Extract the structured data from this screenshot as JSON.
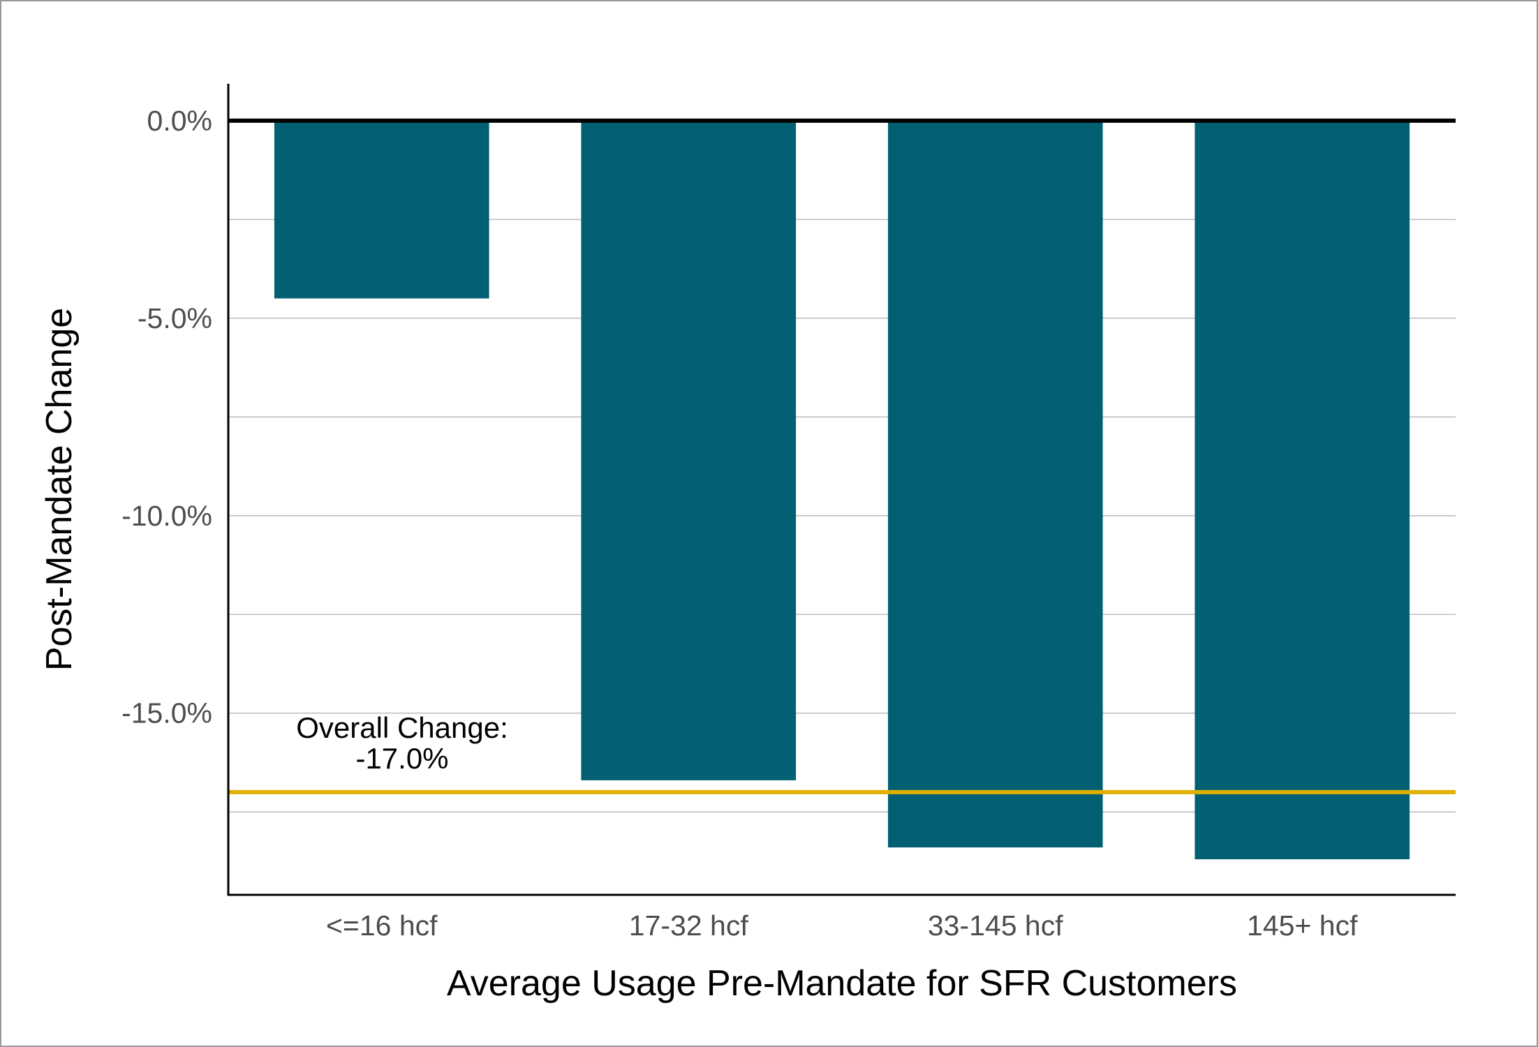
{
  "chart_data": {
    "type": "bar",
    "title": "",
    "xlabel": "Average Usage Pre-Mandate for SFR Customers",
    "ylabel": "Post-Mandate Change",
    "categories": [
      "<=16 hcf",
      "17-32 hcf",
      "33-145 hcf",
      "145+ hcf"
    ],
    "values": [
      -4.5,
      -16.7,
      -18.4,
      -18.7
    ],
    "unit": "%",
    "ylim": [
      -19.6,
      0.9
    ],
    "yticks": [
      0,
      -5,
      -10,
      -15
    ],
    "ytick_labels": [
      "0.0%",
      "-5.0%",
      "-10.0%",
      "-15.0%"
    ],
    "minor_gridlines": [
      -2.5,
      -7.5,
      -12.5,
      -17.5
    ],
    "grid": true,
    "legend": "none",
    "reference_line": {
      "value": -17.0,
      "label_line1": "Overall Change:",
      "label_line2": "-17.0%",
      "color": "#E0B000"
    },
    "zero_line": true,
    "bar_color": "#036073"
  }
}
